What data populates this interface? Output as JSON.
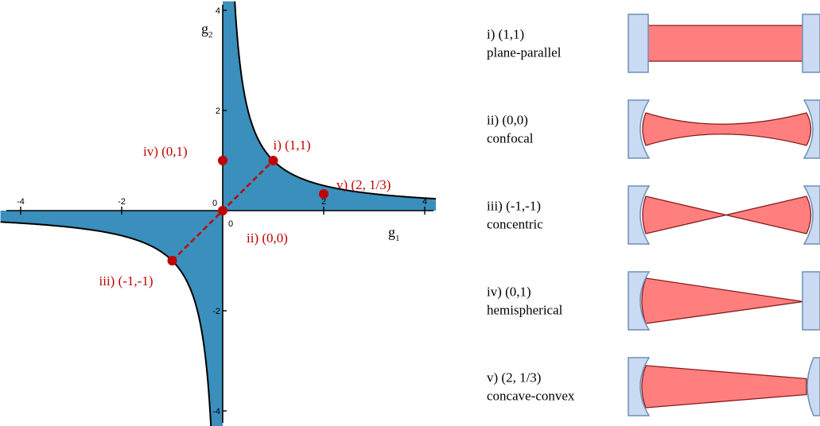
{
  "colors": {
    "stable_region": "#3a8fbc",
    "boundary": "#000000",
    "accent_red": "#c00000",
    "mirror_fill": "#c9daf2",
    "mirror_stroke": "#6f8fb5",
    "beam_fill": "#ff7f7f",
    "beam_stroke": "#8b1a1a"
  },
  "plot": {
    "axis_x_label": "g",
    "axis_x_sub": "1",
    "axis_y_label": "g",
    "axis_y_sub": "2",
    "x_ticks": [
      {
        "v": -4,
        "label": "-4"
      },
      {
        "v": -2,
        "label": "-2"
      },
      {
        "v": 0,
        "label": "0"
      },
      {
        "v": 2,
        "label": "2"
      },
      {
        "v": 4,
        "label": "4"
      }
    ],
    "y_ticks": [
      {
        "v": 4,
        "label": "4"
      },
      {
        "v": 2,
        "label": "2"
      },
      {
        "v": 0,
        "label": "0"
      },
      {
        "v": -2,
        "label": "-2"
      },
      {
        "v": -4,
        "label": "-4"
      }
    ],
    "stability_boundary": "g1 g2 = 1",
    "points": [
      {
        "id": "i",
        "label": "i) (1,1)",
        "g1": 1,
        "g2": 1
      },
      {
        "id": "ii",
        "label": "ii) (0,0)",
        "g1": 0,
        "g2": 0
      },
      {
        "id": "iii",
        "label": "iii) (-1,-1)",
        "g1": -1,
        "g2": -1
      },
      {
        "id": "iv",
        "label": "iv) (0,1)",
        "g1": 0,
        "g2": 1
      },
      {
        "id": "v",
        "label": "v) (2, 1/3)",
        "g1": 2,
        "g2": 0.3333
      }
    ],
    "dashed_line": {
      "from": [
        -1,
        -1
      ],
      "to": [
        1,
        1
      ]
    }
  },
  "configurations": [
    {
      "id": "i",
      "coords": "i) (1,1)",
      "name": "plane-parallel",
      "beam": "parallel"
    },
    {
      "id": "ii",
      "coords": "ii) (0,0)",
      "name": "confocal",
      "beam": "waist"
    },
    {
      "id": "iii",
      "coords": "iii) (-1,-1)",
      "name": "concentric",
      "beam": "cross"
    },
    {
      "id": "iv",
      "coords": "iv) (0,1)",
      "name": "hemispherical",
      "beam": "taper-right"
    },
    {
      "id": "v",
      "coords": "v) (2, 1/3)",
      "name": "concave-convex",
      "beam": "taper-partial"
    }
  ]
}
